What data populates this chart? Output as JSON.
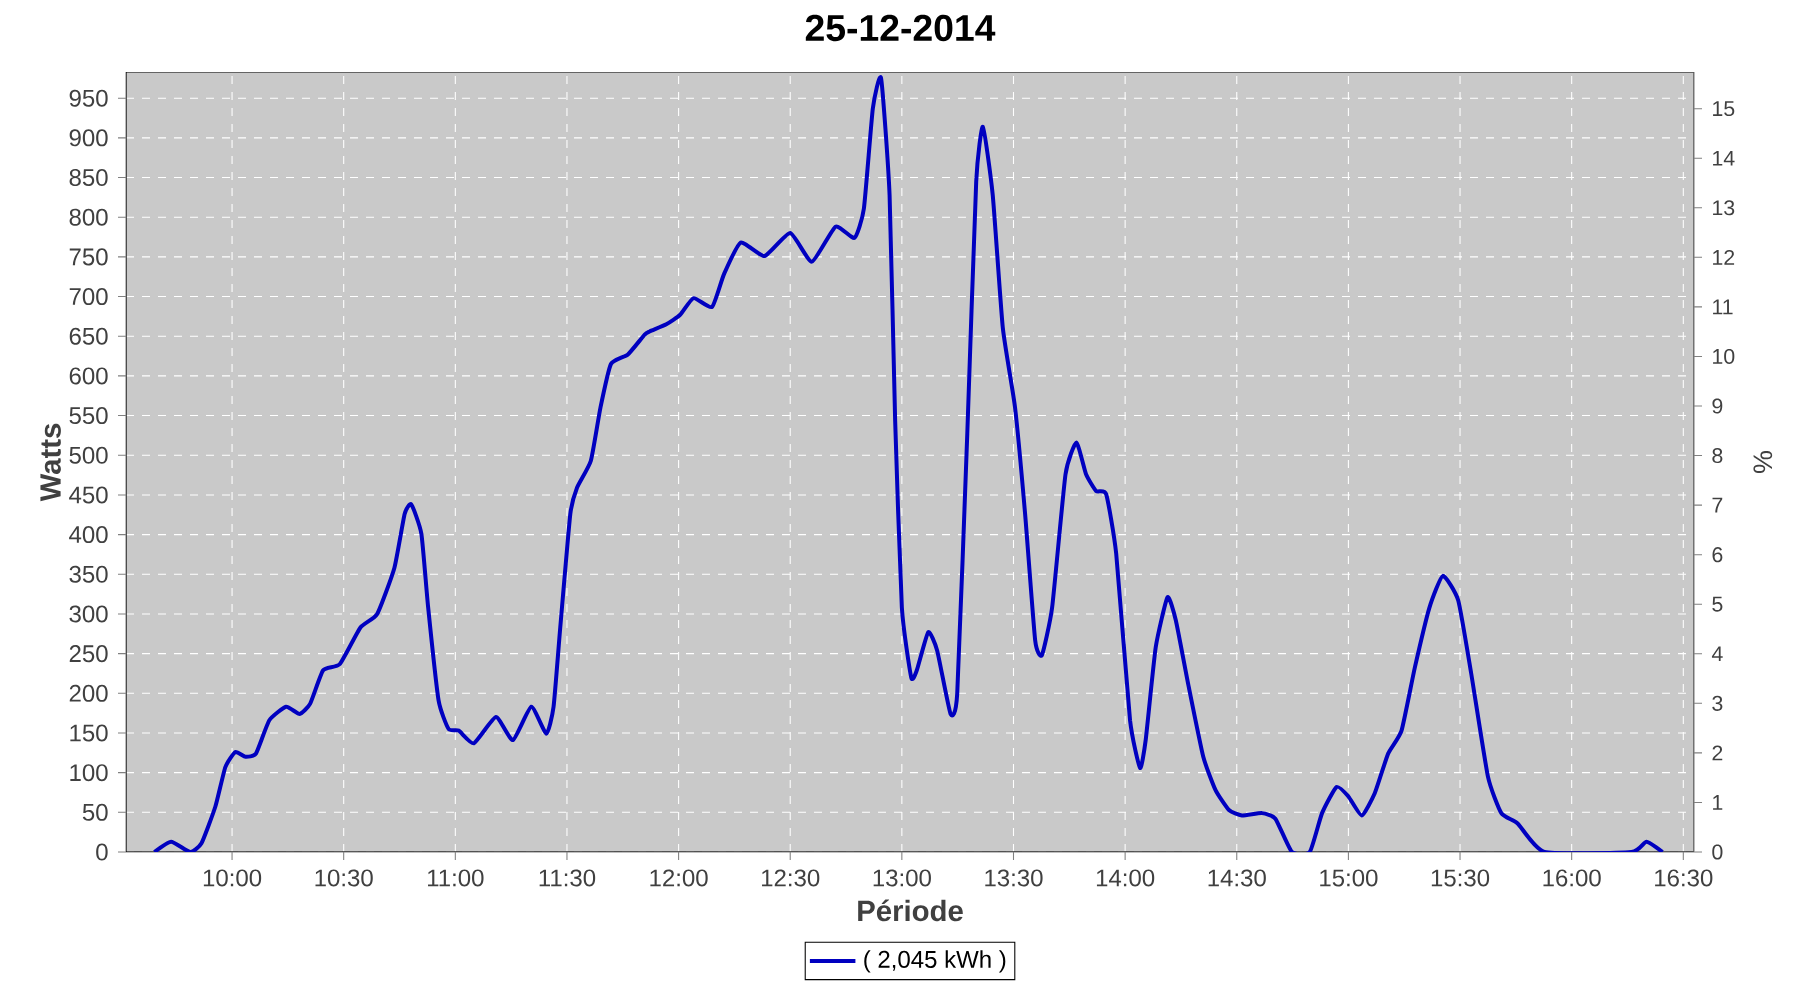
{
  "chart_data": {
    "type": "line",
    "title": "25-12-2014",
    "xlabel": "Période",
    "ylabel": "Watts",
    "y2label": "%",
    "xlim": [
      9.525,
      16.548
    ],
    "xticks": [
      {
        "value": 10,
        "label": "10:00"
      },
      {
        "value": 10.5,
        "label": "10:30"
      },
      {
        "value": 11,
        "label": "11:00"
      },
      {
        "value": 11.5,
        "label": "11:30"
      },
      {
        "value": 12,
        "label": "12:00"
      },
      {
        "value": 12.5,
        "label": "12:30"
      },
      {
        "value": 13,
        "label": "13:00"
      },
      {
        "value": 13.5,
        "label": "13:30"
      },
      {
        "value": 14,
        "label": "14:00"
      },
      {
        "value": 14.5,
        "label": "14:30"
      },
      {
        "value": 15,
        "label": "15:00"
      },
      {
        "value": 15.5,
        "label": "15:30"
      },
      {
        "value": 16,
        "label": "16:00"
      },
      {
        "value": 16.5,
        "label": "16:30"
      }
    ],
    "ylim": [
      0,
      983
    ],
    "yticks": [
      0,
      50,
      100,
      150,
      200,
      250,
      300,
      350,
      400,
      450,
      500,
      550,
      600,
      650,
      700,
      750,
      800,
      850,
      900,
      950
    ],
    "y2lim": [
      0,
      15.74
    ],
    "y2ticks": [
      0,
      1,
      2,
      3,
      4,
      5,
      6,
      7,
      8,
      9,
      10,
      11,
      12,
      13,
      14,
      15
    ],
    "grid": true,
    "legend": "bottom",
    "series": [
      {
        "name": "( 2,045 kWh )",
        "color": "#0000c0",
        "x": [
          9.652,
          9.727,
          9.812,
          9.863,
          9.925,
          9.97,
          10.015,
          10.06,
          10.107,
          10.167,
          10.242,
          10.303,
          10.35,
          10.408,
          10.483,
          10.575,
          10.65,
          10.727,
          10.773,
          10.803,
          10.848,
          10.878,
          10.925,
          10.97,
          11.015,
          11.083,
          11.182,
          11.258,
          11.34,
          11.408,
          11.44,
          11.47,
          11.515,
          11.545,
          11.607,
          11.65,
          11.697,
          11.773,
          11.848,
          11.87,
          11.945,
          12.007,
          12.067,
          12.15,
          12.203,
          12.278,
          12.385,
          12.5,
          12.597,
          12.703,
          12.788,
          12.83,
          12.87,
          12.907,
          12.945,
          12.97,
          13.0,
          13.042,
          13.067,
          13.118,
          13.158,
          13.218,
          13.248,
          13.293,
          13.333,
          13.363,
          13.407,
          13.452,
          13.507,
          13.552,
          13.597,
          13.627,
          13.673,
          13.733,
          13.782,
          13.825,
          13.87,
          13.915,
          13.96,
          14.022,
          14.067,
          14.092,
          14.137,
          14.19,
          14.227,
          14.285,
          14.35,
          14.405,
          14.465,
          14.523,
          14.613,
          14.673,
          14.747,
          14.827,
          14.882,
          14.947,
          15.0,
          15.06,
          15.118,
          15.178,
          15.238,
          15.298,
          15.363,
          15.423,
          15.492,
          15.55,
          15.625,
          15.685,
          15.758,
          15.878,
          16.267,
          16.335,
          16.407
        ],
        "values": [
          0,
          13,
          0,
          11,
          57,
          107,
          126,
          120,
          124,
          166,
          183,
          174,
          187,
          229,
          237,
          283,
          300,
          358,
          426,
          438,
          401,
          309,
          191,
          155,
          153,
          137,
          170,
          141,
          183,
          149,
          183,
          283,
          426,
          459,
          493,
          560,
          615,
          627,
          652,
          656,
          665,
          677,
          698,
          687,
          728,
          768,
          751,
          780,
          744,
          788,
          774,
          811,
          937,
          975,
          828,
          543,
          308,
          220,
          229,
          277,
          254,
          174,
          200,
          527,
          845,
          914,
          828,
          661,
          560,
          426,
          267,
          248,
          308,
          476,
          516,
          476,
          455,
          451,
          376,
          166,
          106,
          141,
          258,
          321,
          292,
          208,
          120,
          78,
          53,
          46,
          49,
          42,
          0,
          0,
          49,
          82,
          70,
          46,
          74,
          124,
          153,
          233,
          308,
          348,
          317,
          225,
          95,
          49,
          36,
          0,
          0,
          13,
          0
        ]
      }
    ]
  }
}
